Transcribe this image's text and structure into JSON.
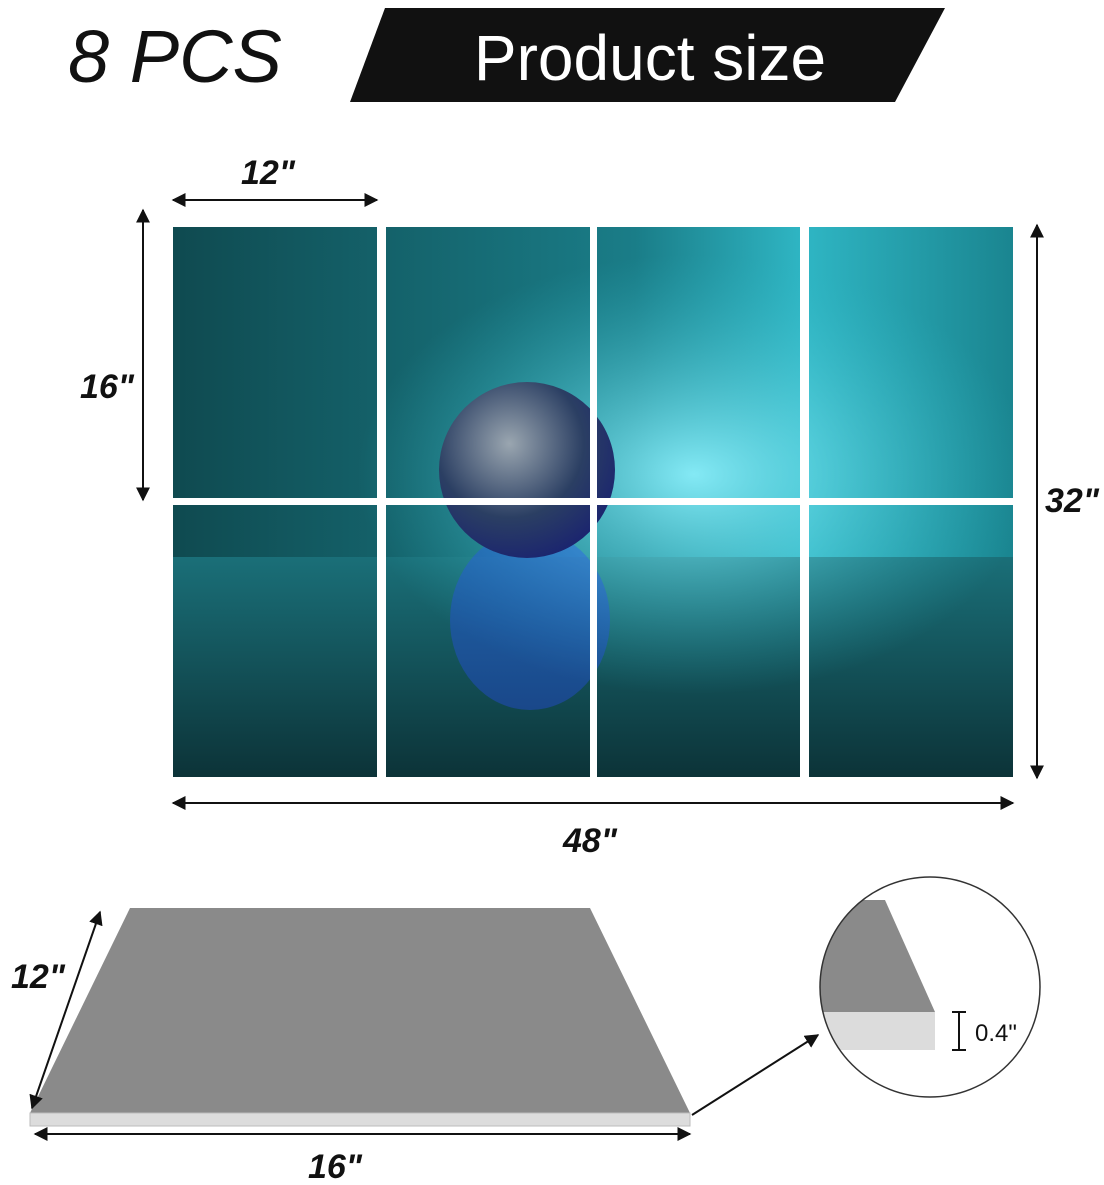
{
  "header": {
    "count": "8 PCS",
    "title": "Product size"
  },
  "wall_set": {
    "panel_width": "12\"",
    "panel_height": "16\"",
    "total_height": "32\"",
    "total_width": "48\""
  },
  "panel_detail": {
    "depth": "12\"",
    "width": "16\"",
    "thickness": "0.4\""
  }
}
